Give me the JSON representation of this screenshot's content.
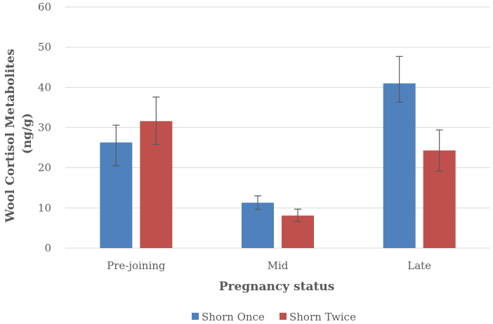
{
  "chart_data": {
    "type": "bar",
    "title": "",
    "xlabel": "Pregnancy status",
    "ylabel_lines": [
      "Wool Cortisol Metabolites",
      "(ng/g)"
    ],
    "categories": [
      "Pre-joining",
      "Mid",
      "Late"
    ],
    "ylim": [
      0,
      60
    ],
    "yticks": [
      0,
      10,
      20,
      30,
      40,
      50,
      60
    ],
    "grid": true,
    "legend_position": "bottom",
    "series": [
      {
        "name": "Shorn Once",
        "color": "#4f81bd",
        "values": [
          26.3,
          11.3,
          41.0
        ],
        "err_low": [
          20.5,
          9.6,
          36.3
        ],
        "err_high": [
          30.6,
          13.0,
          47.7
        ]
      },
      {
        "name": "Shorn Twice",
        "color": "#c0504d",
        "values": [
          31.6,
          8.1,
          24.3
        ],
        "err_low": [
          25.8,
          6.6,
          19.2
        ],
        "err_high": [
          37.6,
          9.7,
          29.4
        ]
      }
    ]
  }
}
